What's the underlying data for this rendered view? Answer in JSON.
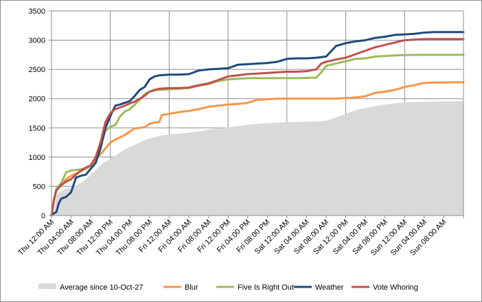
{
  "chart_data": {
    "type": "line",
    "title": "",
    "xlabel": "",
    "ylabel": "",
    "ylim": [
      0,
      3500
    ],
    "yticks": [
      0,
      500,
      1000,
      1500,
      2000,
      2500,
      3000,
      3500
    ],
    "x_tick_labels": [
      "Thu 12:00 AM",
      "Thu 04:00 AM",
      "Thu 08:00 AM",
      "Thu 12:00 PM",
      "Thu 04:00 PM",
      "Thu 08:00 PM",
      "Fri 12:00 AM",
      "Fri 04:00 AM",
      "Fri 08:00 AM",
      "Fri 12:00 PM",
      "Fri 04:00 PM",
      "Fri 08:00 PM",
      "Sat 12:00 AM",
      "Sat 04:00 AM",
      "Sat 08:00 AM",
      "Sat 12:00 PM",
      "Sat 04:00 PM",
      "Sat 08:00 PM",
      "Sun 12:00 AM",
      "Sun 04:00 AM",
      "Sun 08:00 AM"
    ],
    "x_range_hours": [
      0,
      84
    ],
    "grid": true,
    "legend_position": "bottom",
    "series": [
      {
        "name": "Average since 10-Oct-27",
        "type": "area",
        "color": "#d9d9d9",
        "points": [
          [
            0,
            0
          ],
          [
            0.5,
            40
          ],
          [
            1,
            350
          ],
          [
            2,
            420
          ],
          [
            3,
            460
          ],
          [
            4,
            480
          ],
          [
            5,
            520
          ],
          [
            6,
            560
          ],
          [
            7,
            620
          ],
          [
            8,
            700
          ],
          [
            9,
            780
          ],
          [
            10,
            860
          ],
          [
            11,
            920
          ],
          [
            12,
            970
          ],
          [
            13,
            1020
          ],
          [
            14,
            1080
          ],
          [
            15,
            1130
          ],
          [
            16,
            1170
          ],
          [
            17,
            1210
          ],
          [
            18,
            1250
          ],
          [
            19,
            1290
          ],
          [
            20,
            1320
          ],
          [
            22,
            1360
          ],
          [
            24,
            1390
          ],
          [
            26,
            1400
          ],
          [
            28,
            1420
          ],
          [
            30,
            1440
          ],
          [
            32,
            1470
          ],
          [
            34,
            1490
          ],
          [
            36,
            1510
          ],
          [
            38,
            1530
          ],
          [
            40,
            1550
          ],
          [
            42,
            1570
          ],
          [
            44,
            1580
          ],
          [
            46,
            1590
          ],
          [
            48,
            1595
          ],
          [
            50,
            1600
          ],
          [
            52,
            1605
          ],
          [
            54,
            1610
          ],
          [
            56,
            1620
          ],
          [
            58,
            1680
          ],
          [
            60,
            1740
          ],
          [
            62,
            1800
          ],
          [
            64,
            1840
          ],
          [
            66,
            1870
          ],
          [
            68,
            1900
          ],
          [
            70,
            1920
          ],
          [
            72,
            1935
          ],
          [
            74,
            1940
          ],
          [
            76,
            1945
          ],
          [
            78,
            1950
          ],
          [
            80,
            1955
          ],
          [
            82,
            1955
          ],
          [
            84,
            1960
          ]
        ]
      },
      {
        "name": "Blur",
        "type": "line",
        "color": "#f79646",
        "points": [
          [
            0,
            0
          ],
          [
            0.5,
            250
          ],
          [
            1,
            450
          ],
          [
            2,
            530
          ],
          [
            3,
            620
          ],
          [
            4,
            680
          ],
          [
            5,
            720
          ],
          [
            6,
            760
          ],
          [
            7,
            800
          ],
          [
            8,
            850
          ],
          [
            9,
            950
          ],
          [
            10,
            1050
          ],
          [
            11,
            1150
          ],
          [
            12,
            1250
          ],
          [
            13,
            1300
          ],
          [
            14,
            1340
          ],
          [
            15,
            1380
          ],
          [
            16,
            1440
          ],
          [
            17,
            1490
          ],
          [
            18,
            1500
          ],
          [
            19,
            1510
          ],
          [
            20,
            1570
          ],
          [
            21,
            1590
          ],
          [
            22,
            1600
          ],
          [
            22.5,
            1720
          ],
          [
            24,
            1740
          ],
          [
            26,
            1770
          ],
          [
            28,
            1790
          ],
          [
            30,
            1820
          ],
          [
            32,
            1860
          ],
          [
            34,
            1880
          ],
          [
            36,
            1900
          ],
          [
            38,
            1910
          ],
          [
            40,
            1930
          ],
          [
            42,
            1980
          ],
          [
            44,
            1990
          ],
          [
            46,
            2000
          ],
          [
            48,
            2000
          ],
          [
            50,
            2000
          ],
          [
            52,
            2000
          ],
          [
            54,
            2000
          ],
          [
            56,
            2000
          ],
          [
            58,
            2000
          ],
          [
            60,
            2010
          ],
          [
            62,
            2020
          ],
          [
            64,
            2040
          ],
          [
            66,
            2100
          ],
          [
            68,
            2120
          ],
          [
            70,
            2150
          ],
          [
            72,
            2200
          ],
          [
            74,
            2230
          ],
          [
            76,
            2270
          ],
          [
            78,
            2275
          ],
          [
            80,
            2275
          ],
          [
            82,
            2280
          ],
          [
            84,
            2280
          ]
        ]
      },
      {
        "name": "Five Is Right Out",
        "type": "line",
        "color": "#9bbb59",
        "points": [
          [
            0,
            0
          ],
          [
            0.5,
            260
          ],
          [
            1,
            460
          ],
          [
            2,
            560
          ],
          [
            3,
            740
          ],
          [
            4,
            770
          ],
          [
            5,
            780
          ],
          [
            6,
            790
          ],
          [
            7,
            810
          ],
          [
            8,
            850
          ],
          [
            9,
            1000
          ],
          [
            10,
            1200
          ],
          [
            11,
            1450
          ],
          [
            12,
            1520
          ],
          [
            13,
            1550
          ],
          [
            14,
            1700
          ],
          [
            15,
            1780
          ],
          [
            16,
            1820
          ],
          [
            17,
            1900
          ],
          [
            18,
            1980
          ],
          [
            19,
            2080
          ],
          [
            20,
            2120
          ],
          [
            21,
            2140
          ],
          [
            22,
            2150
          ],
          [
            24,
            2160
          ],
          [
            26,
            2170
          ],
          [
            28,
            2180
          ],
          [
            30,
            2220
          ],
          [
            32,
            2250
          ],
          [
            34,
            2300
          ],
          [
            36,
            2330
          ],
          [
            38,
            2340
          ],
          [
            40,
            2350
          ],
          [
            42,
            2350
          ],
          [
            44,
            2350
          ],
          [
            46,
            2350
          ],
          [
            48,
            2350
          ],
          [
            50,
            2350
          ],
          [
            52,
            2355
          ],
          [
            54,
            2360
          ],
          [
            55,
            2450
          ],
          [
            56,
            2560
          ],
          [
            58,
            2600
          ],
          [
            60,
            2640
          ],
          [
            62,
            2680
          ],
          [
            64,
            2690
          ],
          [
            66,
            2720
          ],
          [
            68,
            2730
          ],
          [
            70,
            2740
          ],
          [
            72,
            2745
          ],
          [
            74,
            2748
          ],
          [
            76,
            2750
          ],
          [
            78,
            2750
          ],
          [
            80,
            2750
          ],
          [
            82,
            2750
          ],
          [
            84,
            2750
          ]
        ]
      },
      {
        "name": "Weather",
        "type": "line",
        "color": "#1f497d",
        "points": [
          [
            0,
            0
          ],
          [
            0.5,
            40
          ],
          [
            1,
            60
          ],
          [
            1.5,
            210
          ],
          [
            2,
            290
          ],
          [
            3,
            320
          ],
          [
            4,
            400
          ],
          [
            5,
            650
          ],
          [
            6,
            680
          ],
          [
            7,
            700
          ],
          [
            8,
            800
          ],
          [
            9,
            900
          ],
          [
            10,
            1150
          ],
          [
            11,
            1500
          ],
          [
            12,
            1700
          ],
          [
            13,
            1880
          ],
          [
            14,
            1900
          ],
          [
            15,
            1930
          ],
          [
            16,
            1960
          ],
          [
            17,
            2050
          ],
          [
            18,
            2150
          ],
          [
            19,
            2200
          ],
          [
            20,
            2330
          ],
          [
            21,
            2380
          ],
          [
            22,
            2400
          ],
          [
            24,
            2410
          ],
          [
            26,
            2410
          ],
          [
            28,
            2420
          ],
          [
            30,
            2480
          ],
          [
            32,
            2500
          ],
          [
            34,
            2510
          ],
          [
            36,
            2520
          ],
          [
            38,
            2580
          ],
          [
            40,
            2590
          ],
          [
            42,
            2600
          ],
          [
            44,
            2610
          ],
          [
            46,
            2630
          ],
          [
            48,
            2680
          ],
          [
            50,
            2690
          ],
          [
            52,
            2690
          ],
          [
            54,
            2700
          ],
          [
            56,
            2720
          ],
          [
            58,
            2900
          ],
          [
            60,
            2950
          ],
          [
            62,
            2980
          ],
          [
            64,
            3000
          ],
          [
            66,
            3040
          ],
          [
            68,
            3060
          ],
          [
            70,
            3090
          ],
          [
            72,
            3100
          ],
          [
            74,
            3110
          ],
          [
            76,
            3130
          ],
          [
            78,
            3140
          ],
          [
            80,
            3140
          ],
          [
            82,
            3140
          ],
          [
            84,
            3140
          ]
        ]
      },
      {
        "name": "Vote Whoring",
        "type": "line",
        "color": "#c0504d",
        "points": [
          [
            0,
            0
          ],
          [
            0.5,
            280
          ],
          [
            1,
            430
          ],
          [
            2,
            520
          ],
          [
            3,
            580
          ],
          [
            4,
            620
          ],
          [
            5,
            700
          ],
          [
            6,
            770
          ],
          [
            7,
            820
          ],
          [
            8,
            860
          ],
          [
            9,
            1000
          ],
          [
            10,
            1250
          ],
          [
            11,
            1600
          ],
          [
            12,
            1750
          ],
          [
            13,
            1820
          ],
          [
            14,
            1850
          ],
          [
            15,
            1880
          ],
          [
            16,
            1920
          ],
          [
            17,
            1950
          ],
          [
            18,
            2000
          ],
          [
            19,
            2050
          ],
          [
            20,
            2120
          ],
          [
            21,
            2150
          ],
          [
            22,
            2170
          ],
          [
            24,
            2180
          ],
          [
            26,
            2180
          ],
          [
            28,
            2190
          ],
          [
            30,
            2230
          ],
          [
            32,
            2260
          ],
          [
            34,
            2320
          ],
          [
            36,
            2380
          ],
          [
            38,
            2400
          ],
          [
            40,
            2420
          ],
          [
            42,
            2430
          ],
          [
            44,
            2440
          ],
          [
            46,
            2450
          ],
          [
            48,
            2460
          ],
          [
            50,
            2460
          ],
          [
            52,
            2470
          ],
          [
            54,
            2500
          ],
          [
            55,
            2600
          ],
          [
            56,
            2630
          ],
          [
            58,
            2670
          ],
          [
            60,
            2700
          ],
          [
            62,
            2760
          ],
          [
            64,
            2820
          ],
          [
            66,
            2880
          ],
          [
            68,
            2920
          ],
          [
            70,
            2960
          ],
          [
            72,
            3000
          ],
          [
            74,
            3010
          ],
          [
            76,
            3020
          ],
          [
            78,
            3020
          ],
          [
            80,
            3020
          ],
          [
            82,
            3020
          ],
          [
            84,
            3020
          ]
        ]
      }
    ]
  }
}
